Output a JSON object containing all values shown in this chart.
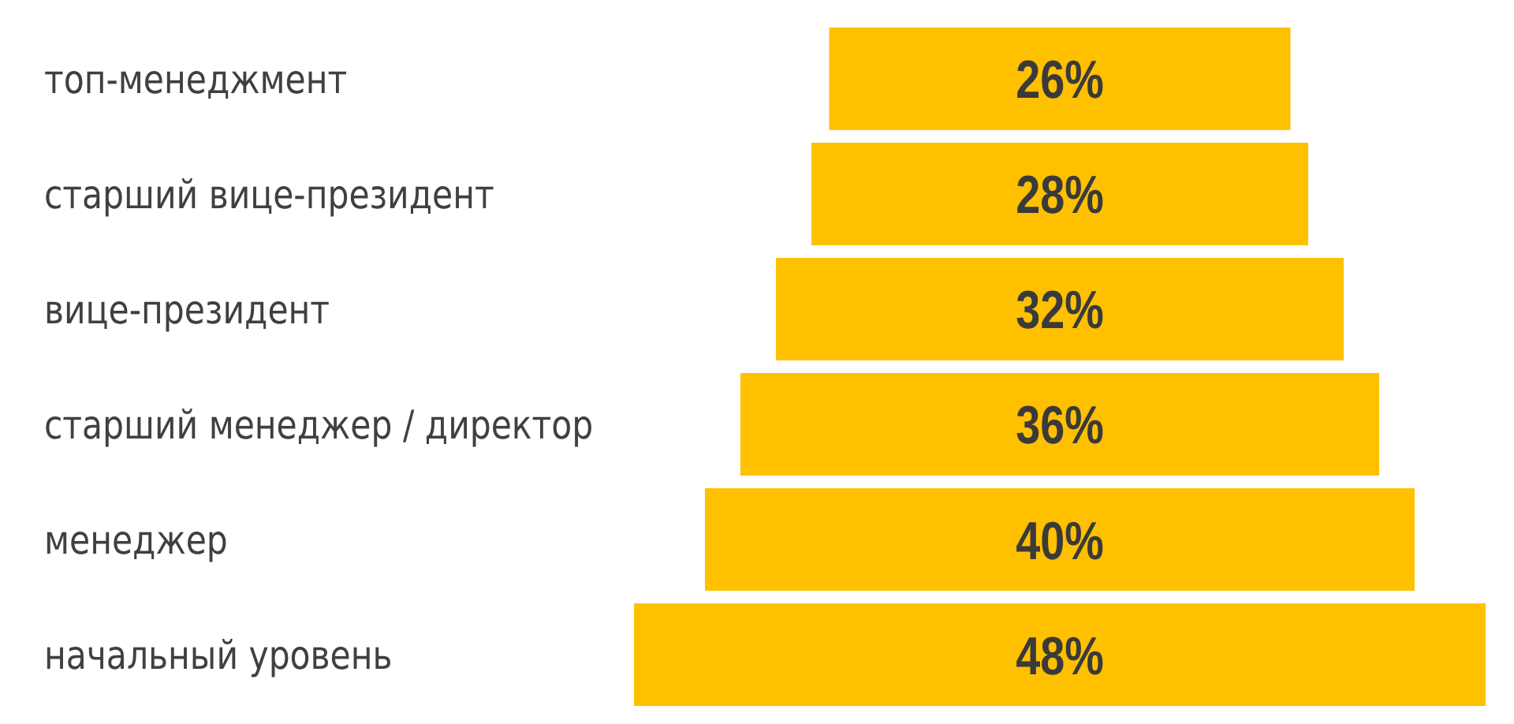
{
  "chart_data": {
    "type": "other",
    "categories": [
      "топ-менеджмент",
      "старший вице-президент",
      "вице-президент",
      "старший менеджер / директор",
      "менеджер",
      "начальный уровень"
    ],
    "values": [
      26,
      28,
      32,
      36,
      40,
      48
    ],
    "color": "#ffc000",
    "value_labels": [
      "26%",
      "28%",
      "32%",
      "36%",
      "40%",
      "48%"
    ]
  }
}
